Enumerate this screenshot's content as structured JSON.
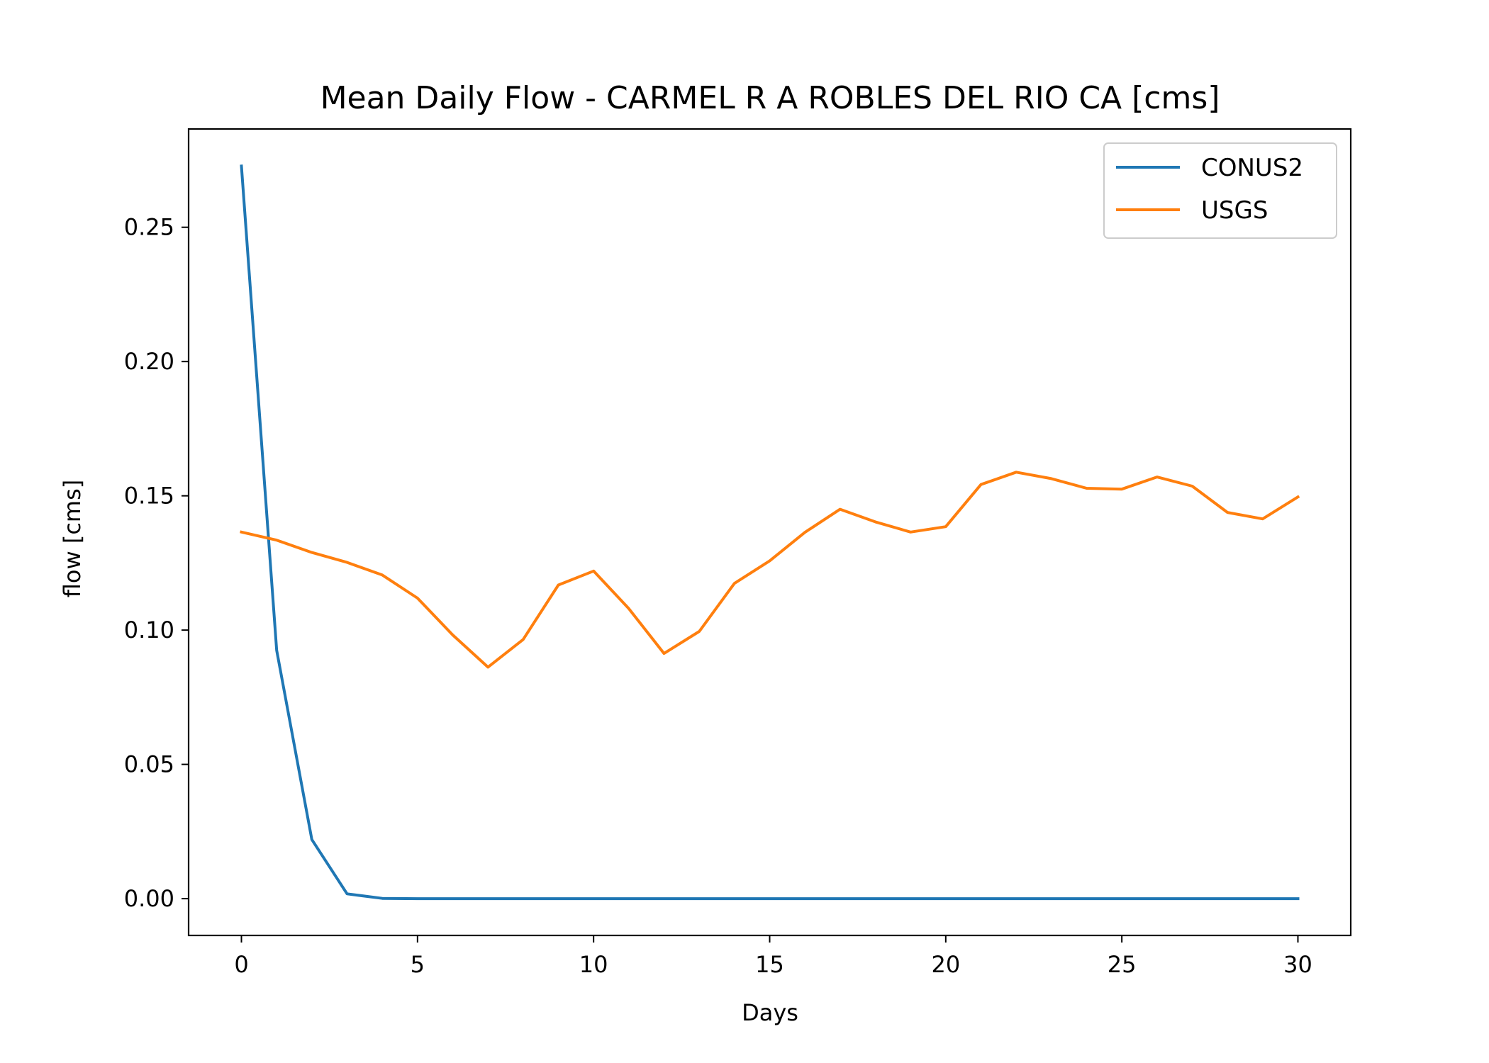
{
  "chart_data": {
    "type": "line",
    "title": "Mean Daily Flow - CARMEL R A ROBLES DEL RIO CA [cms]",
    "xlabel": "Days",
    "ylabel": "flow [cms]",
    "xlim": [
      -1.5,
      31.5
    ],
    "ylim": [
      -0.0137,
      0.2866
    ],
    "xticks": [
      0,
      5,
      10,
      15,
      20,
      25,
      30
    ],
    "xtick_labels": [
      "0",
      "5",
      "10",
      "15",
      "20",
      "25",
      "30"
    ],
    "yticks": [
      0.0,
      0.05,
      0.1,
      0.15,
      0.2,
      0.25
    ],
    "ytick_labels": [
      "0.00",
      "0.05",
      "0.10",
      "0.15",
      "0.20",
      "0.25"
    ],
    "grid": false,
    "legend_position": "top-right",
    "x": [
      0,
      1,
      2,
      3,
      4,
      5,
      6,
      7,
      8,
      9,
      10,
      11,
      12,
      13,
      14,
      15,
      16,
      17,
      18,
      19,
      20,
      21,
      22,
      23,
      24,
      25,
      26,
      27,
      28,
      29,
      30
    ],
    "series": [
      {
        "name": "CONUS2",
        "color": "#1f77b4",
        "values": [
          0.2728,
          0.0925,
          0.022,
          0.0018,
          0.0001,
          0,
          0,
          0,
          0,
          0,
          0,
          0,
          0,
          0,
          0,
          0,
          0,
          0,
          0,
          0,
          0,
          0,
          0,
          0,
          0,
          0,
          0,
          0,
          0,
          0,
          0
        ]
      },
      {
        "name": "USGS",
        "color": "#ff7f0e",
        "values": [
          0.1365,
          0.1335,
          0.1289,
          0.1252,
          0.1205,
          0.1119,
          0.0982,
          0.0862,
          0.0965,
          0.1168,
          0.122,
          0.108,
          0.0913,
          0.0995,
          0.1174,
          0.1258,
          0.1364,
          0.145,
          0.1403,
          0.1365,
          0.1385,
          0.1542,
          0.1588,
          0.1564,
          0.1528,
          0.1525,
          0.157,
          0.1536,
          0.1438,
          0.1414,
          0.1496
        ]
      }
    ]
  }
}
